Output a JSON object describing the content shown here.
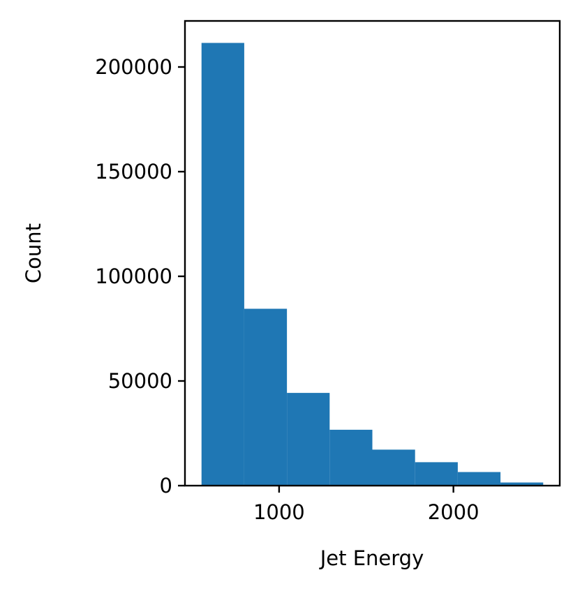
{
  "chart_data": {
    "type": "bar",
    "subtype": "histogram",
    "xlabel": "Jet Energy",
    "ylabel": "Count",
    "bins": [
      {
        "x0": 555,
        "x1": 800,
        "count": 211500
      },
      {
        "x0": 800,
        "x1": 1045,
        "count": 84500
      },
      {
        "x0": 1045,
        "x1": 1290,
        "count": 44300
      },
      {
        "x0": 1290,
        "x1": 1535,
        "count": 26700
      },
      {
        "x0": 1535,
        "x1": 1780,
        "count": 17200
      },
      {
        "x0": 1780,
        "x1": 2025,
        "count": 11200
      },
      {
        "x0": 2025,
        "x1": 2270,
        "count": 6500
      },
      {
        "x0": 2270,
        "x1": 2515,
        "count": 1500
      }
    ],
    "xlim": [
      460,
      2610
    ],
    "ylim": [
      0,
      222000
    ],
    "xticks": [
      1000,
      2000
    ],
    "xtick_labels": [
      "1000",
      "2000"
    ],
    "yticks": [
      0,
      50000,
      100000,
      150000,
      200000
    ],
    "ytick_labels": [
      "0",
      "50000",
      "100000",
      "150000",
      "200000"
    ],
    "bar_color": "#1f77b4",
    "grid": false,
    "legend": false
  }
}
